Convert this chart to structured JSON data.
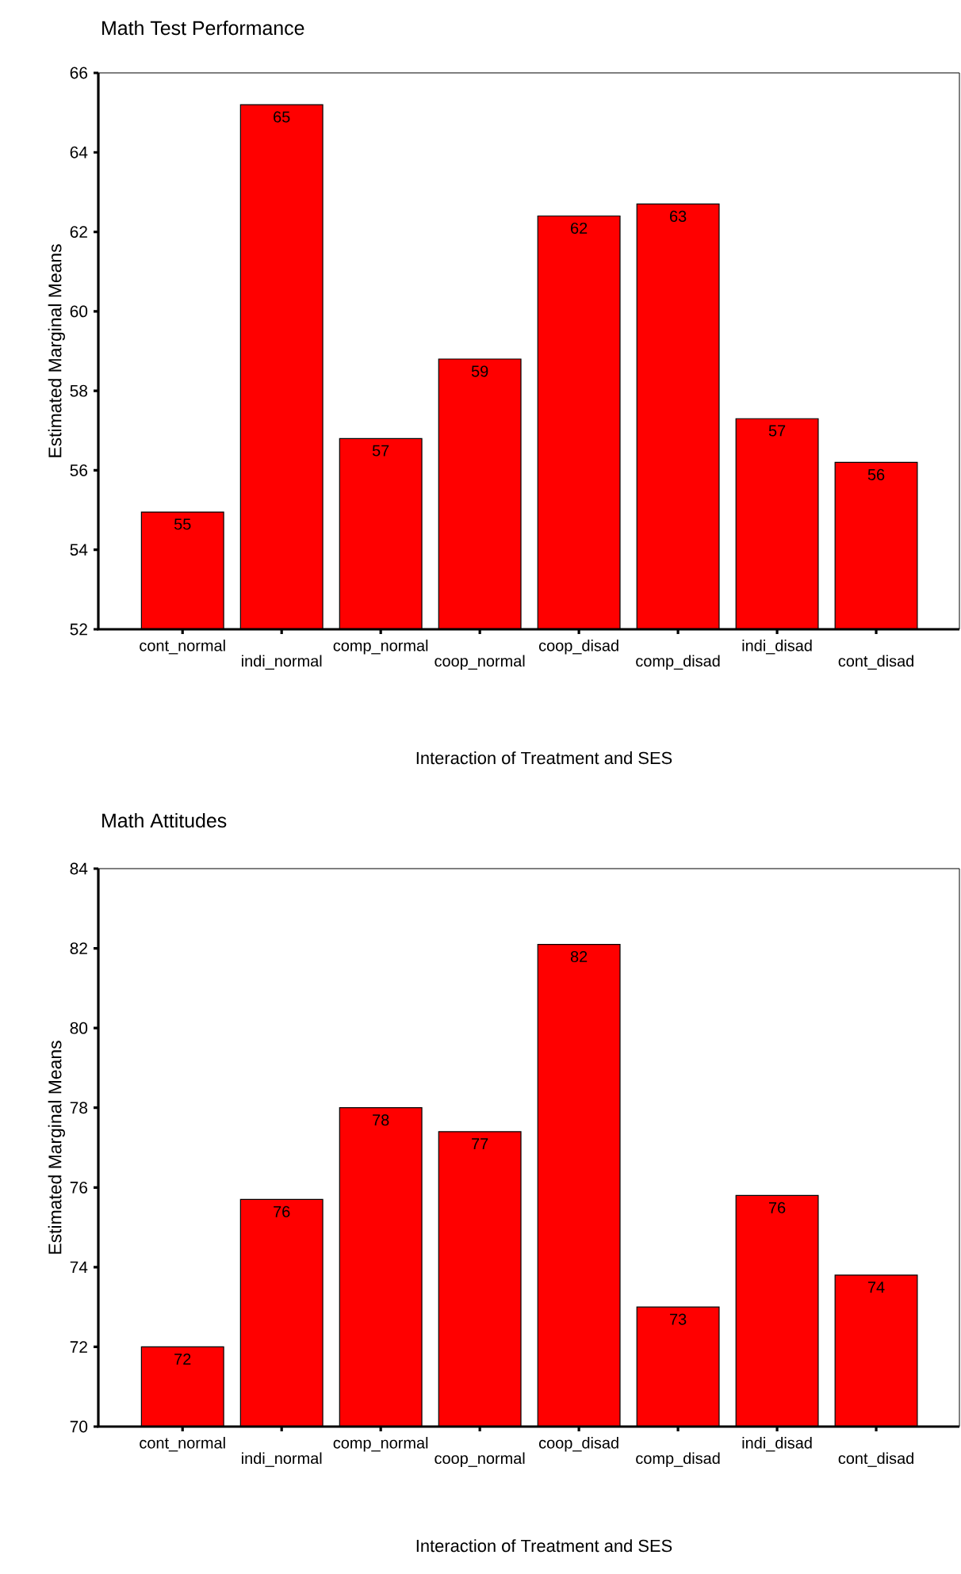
{
  "chart_data": [
    {
      "type": "bar",
      "title": "Math Test Performance",
      "xlabel": "Interaction of Treatment and  SES",
      "ylabel": "Estimated Marginal Means",
      "categories": [
        "cont_normal",
        "indi_normal",
        "comp_normal",
        "coop_normal",
        "coop_disad",
        "comp_disad",
        "indi_disad",
        "cont_disad"
      ],
      "values": [
        54.95,
        65.2,
        56.8,
        58.8,
        62.4,
        62.7,
        57.3,
        56.2
      ],
      "value_labels": [
        "55",
        "65",
        "57",
        "59",
        "62",
        "63",
        "57",
        "56"
      ],
      "color": "#ff0000",
      "ylim": [
        52,
        66
      ],
      "yticks": [
        52,
        54,
        56,
        58,
        60,
        62,
        64,
        66
      ],
      "grid": false
    },
    {
      "type": "bar",
      "title": "Math Attitudes",
      "xlabel": "Interaction of Treatment and SES",
      "ylabel": "Estimated Marginal Means",
      "categories": [
        "cont_normal",
        "indi_normal",
        "comp_normal",
        "coop_normal",
        "coop_disad",
        "comp_disad",
        "indi_disad",
        "cont_disad"
      ],
      "values": [
        72.0,
        75.7,
        78.0,
        77.4,
        82.1,
        73.0,
        75.8,
        73.8
      ],
      "value_labels": [
        "72",
        "76",
        "78",
        "77",
        "82",
        "73",
        "76",
        "74"
      ],
      "color": "#ff0000",
      "ylim": [
        70,
        84
      ],
      "yticks": [
        70,
        72,
        74,
        76,
        78,
        80,
        82,
        84
      ],
      "grid": false
    }
  ]
}
